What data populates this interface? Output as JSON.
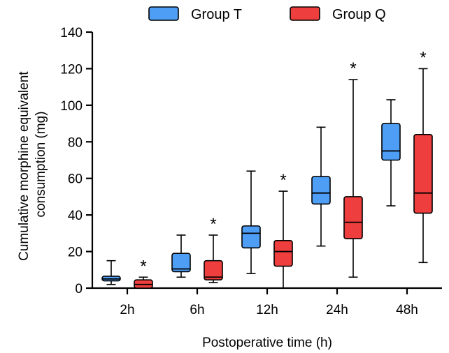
{
  "chart_data": {
    "type": "boxplot",
    "xlabel": "Postoperative time (h)",
    "ylabel_lines": [
      "Cumulative  morphine equivalent",
      "consumption (mg)"
    ],
    "ylim": [
      0,
      140
    ],
    "yticks": [
      0,
      20,
      40,
      60,
      80,
      100,
      120,
      140
    ],
    "categories": [
      "2h",
      "6h",
      "12h",
      "24h",
      "48h"
    ],
    "significance_marker": "*",
    "significant_categories": [
      "2h",
      "6h",
      "12h",
      "24h",
      "48h"
    ],
    "series": [
      {
        "name": "Group T",
        "color": "#4f9ef5",
        "boxes": [
          {
            "min": 2,
            "q1": 4,
            "median": 5,
            "q3": 6.5,
            "max": 15
          },
          {
            "min": 6,
            "q1": 9,
            "median": 10.5,
            "q3": 19,
            "max": 29
          },
          {
            "min": 8,
            "q1": 22,
            "median": 30,
            "q3": 34,
            "max": 64
          },
          {
            "min": 23,
            "q1": 46,
            "median": 52,
            "q3": 61,
            "max": 88
          },
          {
            "min": 45,
            "q1": 70,
            "median": 75,
            "q3": 90,
            "max": 103
          }
        ]
      },
      {
        "name": "Group Q",
        "color": "#ef3e3e",
        "boxes": [
          {
            "min": 0,
            "q1": 0,
            "median": 2,
            "q3": 4.5,
            "max": 6
          },
          {
            "min": 3,
            "q1": 4.5,
            "median": 6,
            "q3": 15,
            "max": 29
          },
          {
            "min": 0,
            "q1": 12,
            "median": 20,
            "q3": 26,
            "max": 53
          },
          {
            "min": 6,
            "q1": 27,
            "median": 36,
            "q3": 50,
            "max": 114
          },
          {
            "min": 14,
            "q1": 41,
            "median": 52,
            "q3": 84,
            "max": 120
          }
        ]
      }
    ],
    "legend_position": "top"
  }
}
